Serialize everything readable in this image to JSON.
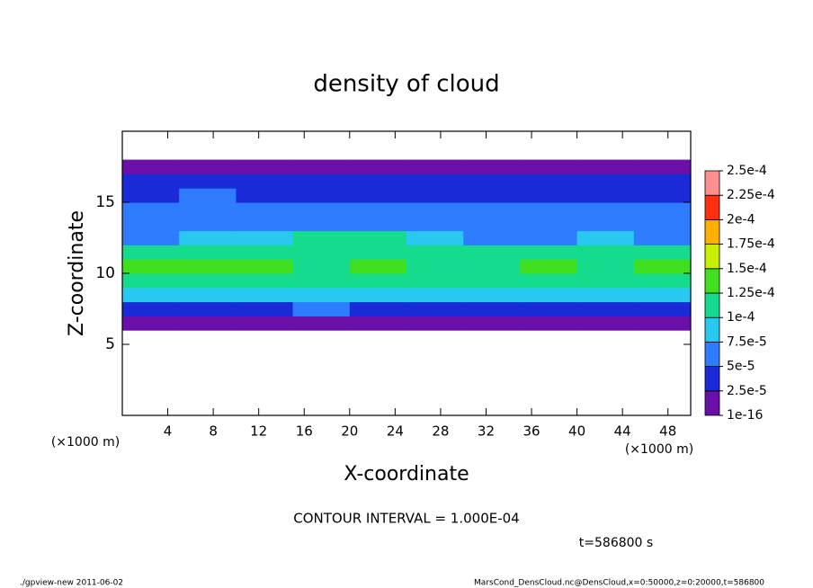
{
  "chart_data": {
    "type": "heatmap",
    "title": "density of cloud",
    "xlabel": "X-coordinate",
    "ylabel": "Z-coordinate",
    "x_unit": "(×1000 m)",
    "xlim": [
      0,
      50
    ],
    "ylim": [
      0,
      20
    ],
    "xticks": [
      4,
      8,
      12,
      16,
      20,
      24,
      28,
      32,
      36,
      40,
      44,
      48
    ],
    "yticks": [
      5,
      10,
      15
    ],
    "x": [
      2.5,
      7.5,
      12.5,
      17.5,
      22.5,
      27.5,
      32.5,
      37.5,
      42.5,
      47.5
    ],
    "y": [
      6.5,
      7.5,
      8.5,
      9.5,
      10.5,
      11.5,
      12.5,
      13.5,
      14.5,
      15.5,
      16.5,
      17.5
    ],
    "values": [
      [
        1.2e-05,
        1.3e-05,
        1.2e-05,
        1.4e-05,
        1.1e-05,
        1.3e-05,
        1.2e-05,
        1.2e-05,
        1.3e-05,
        1.2e-05
      ],
      [
        3.5e-05,
        4e-05,
        4.5e-05,
        5.5e-05,
        3e-05,
        4e-05,
        4e-05,
        3.5e-05,
        4e-05,
        4e-05
      ],
      [
        8e-05,
        8.5e-05,
        9e-05,
        9.5e-05,
        8e-05,
        8.5e-05,
        8.5e-05,
        8e-05,
        8e-05,
        8.5e-05
      ],
      [
        0.000115,
        0.00012,
        0.000115,
        0.00011,
        0.000115,
        0.00012,
        0.000115,
        0.00011,
        0.000115,
        0.00011
      ],
      [
        0.00013,
        0.000135,
        0.000125,
        0.00012,
        0.000125,
        0.00012,
        0.00012,
        0.000125,
        0.00012,
        0.000125
      ],
      [
        0.000105,
        0.00011,
        0.00011,
        0.000115,
        0.00011,
        0.000105,
        0.0001,
        0.0001,
        0.000105,
        0.000105
      ],
      [
        6.5e-05,
        7.5e-05,
        9e-05,
        0.000105,
        0.0001,
        7.5e-05,
        6.5e-05,
        7e-05,
        8e-05,
        7e-05
      ],
      [
        6e-05,
        6e-05,
        6.5e-05,
        7e-05,
        6.5e-05,
        6e-05,
        5.5e-05,
        6e-05,
        6e-05,
        6e-05
      ],
      [
        5.5e-05,
        6e-05,
        5.5e-05,
        6e-05,
        5.5e-05,
        5.5e-05,
        5e-05,
        5e-05,
        5.5e-05,
        5.5e-05
      ],
      [
        4.5e-05,
        5e-05,
        4.5e-05,
        4.5e-05,
        4.5e-05,
        4e-05,
        4e-05,
        4e-05,
        4.5e-05,
        4.5e-05
      ],
      [
        3e-05,
        3e-05,
        3e-05,
        3e-05,
        2.5e-05,
        3e-05,
        3e-05,
        3e-05,
        3e-05,
        3e-05
      ],
      [
        1.2e-05,
        1.2e-05,
        1.1e-05,
        1.2e-05,
        1.3e-05,
        1.2e-05,
        1.2e-05,
        1.1e-05,
        1.2e-05,
        1.2e-05
      ]
    ],
    "colorbar": {
      "ticks": [
        {
          "value": 1e-16,
          "label": "1e-16"
        },
        {
          "value": 2.5e-05,
          "label": "2.5e-5"
        },
        {
          "value": 5e-05,
          "label": "5e-5"
        },
        {
          "value": 7.5e-05,
          "label": "7.5e-5"
        },
        {
          "value": 0.0001,
          "label": "1e-4"
        },
        {
          "value": 0.000125,
          "label": "1.25e-4"
        },
        {
          "value": 0.00015,
          "label": "1.5e-4"
        },
        {
          "value": 0.000175,
          "label": "1.75e-4"
        },
        {
          "value": 0.0002,
          "label": "2e-4"
        },
        {
          "value": 0.000225,
          "label": "2.25e-4"
        },
        {
          "value": 0.00025,
          "label": "2.5e-4"
        }
      ],
      "colors": [
        "#6a10a8",
        "#1a2ad8",
        "#2e7cff",
        "#28c8f0",
        "#14dc8c",
        "#40e020",
        "#c8f000",
        "#ffb000",
        "#ff3010",
        "#ff9090"
      ]
    },
    "contour_interval_label": "CONTOUR INTERVAL = 1.000E-04",
    "time_label": "t=586800 s",
    "footer_left": "./gpview-new  2011-06-02",
    "footer_right": "MarsCond_DensCloud.nc@DensCloud,x=0:50000,z=0:20000,t=586800"
  }
}
